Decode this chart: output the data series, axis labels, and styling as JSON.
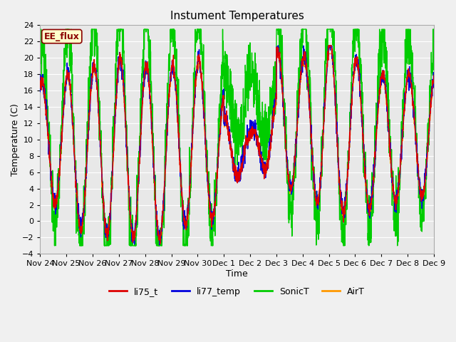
{
  "title": "Instument Temperatures",
  "xlabel": "Time",
  "ylabel": "Temperature (C)",
  "ylim": [
    -4,
    24
  ],
  "bg_color": "#e8e8e8",
  "fig_color": "#f0f0f0",
  "grid_color": "#ffffff",
  "annotation_text": "EE_flux",
  "annotation_bg": "#ffffcc",
  "annotation_border": "#8B0000",
  "series": {
    "li75_t": {
      "color": "#dd0000",
      "lw": 1.0
    },
    "li77_temp": {
      "color": "#0000dd",
      "lw": 1.0
    },
    "SonicT": {
      "color": "#00cc00",
      "lw": 1.0
    },
    "AirT": {
      "color": "#ff9900",
      "lw": 1.0
    }
  },
  "x_ticks": [
    "Nov 24",
    "Nov 25",
    "Nov 26",
    "Nov 27",
    "Nov 28",
    "Nov 29",
    "Nov 30",
    "Dec 1",
    "Dec 2",
    "Dec 3",
    "Dec 4",
    "Dec 5",
    "Dec 6",
    "Dec 7",
    "Dec 8",
    "Dec 9"
  ],
  "x_tick_positions": [
    0,
    1,
    2,
    3,
    4,
    5,
    6,
    7,
    8,
    9,
    10,
    11,
    12,
    13,
    14,
    15
  ],
  "num_points": 2160,
  "days": 15
}
